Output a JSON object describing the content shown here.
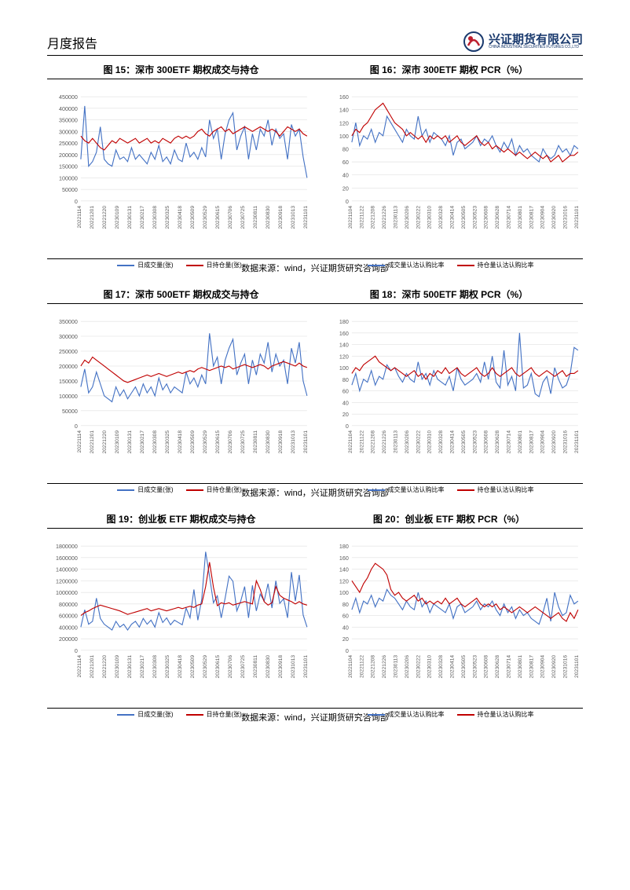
{
  "header": {
    "title": "月度报告",
    "logo_cn": "兴证期货有限公司",
    "logo_en": "CHINA INDUSTRIAL SECURITIES FUTURES CO.,LTD"
  },
  "source_text": "数据来源：wind，兴证期货研究咨询部",
  "colors": {
    "blue": "#4472c4",
    "red": "#c00000",
    "logo_blue": "#1a3a6e",
    "logo_red": "#bd1e2d",
    "grid": "#d9d9d9",
    "axis": "#595959",
    "tick_text": "#595959"
  },
  "charts": [
    {
      "row_id": 1,
      "left": {
        "title": "图 15：深市 300ETF 期权成交与持仓",
        "ylim": [
          0,
          450000
        ],
        "ytick_step": 50000,
        "xlabels": [
          "20221114",
          "20221201",
          "20221220",
          "20230109",
          "20230131",
          "20230217",
          "20230308",
          "20230325",
          "20230418",
          "20230509",
          "20230529",
          "20230615",
          "20230706",
          "20230725",
          "20230811",
          "20230830",
          "20230918",
          "20231013",
          "20231101"
        ],
        "series1_label": "日成交量(张)",
        "series2_label": "日持仓量(张)",
        "series1_color": "#4472c4",
        "series2_color": "#c00000",
        "series1": [
          180000,
          410000,
          150000,
          170000,
          210000,
          320000,
          180000,
          160000,
          150000,
          220000,
          180000,
          190000,
          170000,
          230000,
          180000,
          200000,
          180000,
          160000,
          210000,
          180000,
          240000,
          170000,
          190000,
          160000,
          220000,
          180000,
          170000,
          250000,
          190000,
          210000,
          180000,
          230000,
          190000,
          350000,
          270000,
          310000,
          180000,
          290000,
          350000,
          380000,
          220000,
          280000,
          320000,
          180000,
          290000,
          220000,
          310000,
          280000,
          350000,
          240000,
          310000,
          270000,
          290000,
          180000,
          330000,
          280000,
          310000,
          190000,
          100000
        ],
        "series2": [
          280000,
          260000,
          250000,
          270000,
          250000,
          230000,
          220000,
          240000,
          260000,
          250000,
          270000,
          260000,
          250000,
          260000,
          270000,
          250000,
          260000,
          270000,
          250000,
          260000,
          250000,
          270000,
          260000,
          250000,
          270000,
          280000,
          270000,
          280000,
          270000,
          280000,
          300000,
          310000,
          290000,
          280000,
          300000,
          310000,
          320000,
          300000,
          310000,
          290000,
          300000,
          310000,
          320000,
          310000,
          300000,
          310000,
          320000,
          310000,
          300000,
          310000,
          300000,
          280000,
          300000,
          320000,
          310000,
          300000,
          310000,
          290000,
          280000
        ]
      },
      "right": {
        "title": "图 16：深市 300ETF 期权 PCR（%）",
        "ylim": [
          0,
          160
        ],
        "ytick_step": 20,
        "xlabels": [
          "20221104",
          "20221122",
          "20221208",
          "20221226",
          "20230113",
          "20230206",
          "20230222",
          "20230310",
          "20230328",
          "20230414",
          "20230505",
          "20230523",
          "20230608",
          "20230628",
          "20230714",
          "20230801",
          "20230817",
          "20230904",
          "20230920",
          "20231016",
          "20231101"
        ],
        "series1_label": "成交量认沽认购比率",
        "series2_label": "持仓量认沽认购比率",
        "series1_color": "#4472c4",
        "series2_color": "#c00000",
        "series1": [
          90,
          120,
          85,
          100,
          95,
          110,
          90,
          105,
          100,
          130,
          120,
          110,
          100,
          90,
          110,
          100,
          95,
          130,
          100,
          110,
          90,
          105,
          100,
          95,
          85,
          100,
          70,
          90,
          95,
          80,
          85,
          90,
          100,
          85,
          95,
          90,
          100,
          85,
          75,
          90,
          80,
          95,
          70,
          85,
          75,
          80,
          70,
          65,
          60,
          80,
          70,
          65,
          70,
          85,
          75,
          80,
          70,
          85,
          80
        ],
        "series2": [
          100,
          110,
          105,
          115,
          120,
          130,
          140,
          145,
          150,
          140,
          130,
          120,
          115,
          110,
          100,
          105,
          100,
          95,
          100,
          90,
          100,
          95,
          100,
          95,
          100,
          90,
          95,
          100,
          90,
          85,
          90,
          95,
          100,
          90,
          85,
          90,
          80,
          85,
          80,
          75,
          80,
          75,
          70,
          75,
          70,
          65,
          70,
          75,
          70,
          65,
          70,
          60,
          65,
          70,
          60,
          65,
          70,
          70,
          75
        ]
      }
    },
    {
      "row_id": 2,
      "left": {
        "title": "图 17：深市 500ETF 期权成交与持仓",
        "ylim": [
          0,
          350000
        ],
        "ytick_step": 50000,
        "xlabels": [
          "20221114",
          "20221201",
          "20221220",
          "20230109",
          "20230131",
          "20230217",
          "20230308",
          "20230325",
          "20230418",
          "20230509",
          "20230529",
          "20230615",
          "20230706",
          "20230725",
          "20230811",
          "20230830",
          "20230918",
          "20231013",
          "20231101"
        ],
        "series1_label": "日成交量(张)",
        "series2_label": "日持仓量(张)",
        "series1_color": "#4472c4",
        "series2_color": "#c00000",
        "series1": [
          130000,
          190000,
          110000,
          130000,
          180000,
          140000,
          100000,
          90000,
          80000,
          130000,
          100000,
          120000,
          90000,
          110000,
          130000,
          100000,
          140000,
          110000,
          130000,
          100000,
          160000,
          120000,
          140000,
          110000,
          130000,
          120000,
          110000,
          180000,
          140000,
          160000,
          130000,
          170000,
          140000,
          310000,
          200000,
          230000,
          140000,
          220000,
          260000,
          290000,
          170000,
          210000,
          240000,
          140000,
          220000,
          170000,
          240000,
          210000,
          280000,
          180000,
          240000,
          200000,
          220000,
          140000,
          260000,
          210000,
          280000,
          150000,
          100000
        ],
        "series2": [
          200000,
          220000,
          210000,
          230000,
          220000,
          210000,
          200000,
          190000,
          180000,
          170000,
          160000,
          150000,
          145000,
          150000,
          155000,
          160000,
          165000,
          170000,
          165000,
          170000,
          175000,
          170000,
          165000,
          170000,
          175000,
          180000,
          175000,
          180000,
          185000,
          180000,
          190000,
          195000,
          190000,
          185000,
          190000,
          195000,
          200000,
          195000,
          200000,
          190000,
          195000,
          200000,
          205000,
          200000,
          195000,
          200000,
          205000,
          200000,
          190000,
          200000,
          205000,
          210000,
          215000,
          210000,
          205000,
          200000,
          210000,
          200000,
          195000
        ]
      },
      "right": {
        "title": "图 18：深市 500ETF 期权 PCR（%）",
        "ylim": [
          0,
          180
        ],
        "ytick_step": 20,
        "xlabels": [
          "20221104",
          "20221122",
          "20221208",
          "20221226",
          "20230113",
          "20230206",
          "20230222",
          "20230310",
          "20230328",
          "20230414",
          "20230505",
          "20230523",
          "20230608",
          "20230628",
          "20230714",
          "20230801",
          "20230817",
          "20230904",
          "20230920",
          "20231016",
          "20231101"
        ],
        "series1_label": "成交量认沽认购比率",
        "series2_label": "持仓量认沽认购比率",
        "series1_color": "#4472c4",
        "series2_color": "#c00000",
        "series1": [
          70,
          90,
          60,
          80,
          75,
          95,
          70,
          85,
          80,
          105,
          95,
          100,
          85,
          75,
          90,
          80,
          75,
          110,
          80,
          90,
          70,
          95,
          80,
          75,
          70,
          85,
          60,
          100,
          80,
          70,
          75,
          80,
          90,
          75,
          110,
          80,
          120,
          75,
          65,
          130,
          70,
          85,
          60,
          160,
          65,
          70,
          90,
          55,
          50,
          75,
          85,
          55,
          100,
          80,
          65,
          70,
          90,
          135,
          130
        ],
        "series2": [
          90,
          100,
          95,
          105,
          110,
          115,
          120,
          110,
          105,
          100,
          95,
          100,
          95,
          90,
          85,
          90,
          95,
          85,
          90,
          80,
          90,
          85,
          95,
          90,
          100,
          90,
          95,
          100,
          90,
          85,
          90,
          95,
          100,
          90,
          85,
          90,
          100,
          90,
          85,
          90,
          95,
          100,
          90,
          85,
          90,
          95,
          100,
          90,
          85,
          90,
          95,
          90,
          85,
          90,
          95,
          85,
          90,
          90,
          95
        ]
      }
    },
    {
      "row_id": 3,
      "left": {
        "title": "图 19：创业板 ETF 期权成交与持仓",
        "ylim": [
          0,
          1800000
        ],
        "ytick_step": 200000,
        "xlabels": [
          "20221114",
          "20221201",
          "20221220",
          "20230109",
          "20230131",
          "20230217",
          "20230308",
          "20230325",
          "20230418",
          "20230509",
          "20230529",
          "20230615",
          "20230706",
          "20230725",
          "20230811",
          "20230830",
          "20230918",
          "20231013",
          "20231101"
        ],
        "series1_label": "日成交量(张)",
        "series2_label": "日持仓量(张)",
        "series1_color": "#4472c4",
        "series2_color": "#c00000",
        "series1": [
          400000,
          700000,
          450000,
          500000,
          900000,
          550000,
          450000,
          400000,
          350000,
          500000,
          400000,
          450000,
          350000,
          450000,
          500000,
          400000,
          550000,
          450000,
          520000,
          400000,
          650000,
          480000,
          560000,
          440000,
          520000,
          480000,
          440000,
          730000,
          560000,
          1050000,
          520000,
          880000,
          1700000,
          1280000,
          820000,
          940000,
          560000,
          900000,
          1280000,
          1190000,
          680000,
          850000,
          1100000,
          560000,
          1120000,
          680000,
          970000,
          850000,
          1150000,
          730000,
          1200000,
          810000,
          890000,
          560000,
          1350000,
          850000,
          1300000,
          610000,
          400000
        ],
        "series2": [
          600000,
          650000,
          680000,
          720000,
          750000,
          780000,
          760000,
          740000,
          720000,
          700000,
          680000,
          650000,
          620000,
          640000,
          660000,
          680000,
          700000,
          720000,
          680000,
          700000,
          720000,
          700000,
          680000,
          700000,
          720000,
          740000,
          720000,
          740000,
          760000,
          740000,
          780000,
          800000,
          1100000,
          1520000,
          1090000,
          770000,
          820000,
          800000,
          820000,
          780000,
          800000,
          820000,
          840000,
          820000,
          800000,
          1200000,
          1050000,
          840000,
          780000,
          820000,
          1100000,
          950000,
          900000,
          870000,
          840000,
          800000,
          840000,
          800000,
          780000
        ]
      },
      "right": {
        "title": "图 20：创业板 ETF 期权 PCR（%）",
        "ylim": [
          0,
          180
        ],
        "ytick_step": 20,
        "xlabels": [
          "20221104",
          "20221122",
          "20221208",
          "20221226",
          "20230113",
          "20230206",
          "20230222",
          "20230310",
          "20230328",
          "20230414",
          "20230505",
          "20230523",
          "20230608",
          "20230628",
          "20230714",
          "20230801",
          "20230817",
          "20230904",
          "20230920",
          "20231016",
          "20231101"
        ],
        "series1_label": "成交量认沽认购比率",
        "series2_label": "持仓量认沽认购比率",
        "series1_color": "#4472c4",
        "series2_color": "#c00000",
        "series1": [
          70,
          90,
          65,
          85,
          80,
          95,
          75,
          90,
          85,
          105,
          95,
          90,
          80,
          70,
          85,
          75,
          70,
          100,
          75,
          85,
          65,
          80,
          75,
          70,
          65,
          80,
          55,
          75,
          80,
          65,
          70,
          75,
          85,
          70,
          80,
          75,
          85,
          70,
          60,
          80,
          65,
          75,
          55,
          70,
          60,
          65,
          55,
          50,
          45,
          65,
          90,
          50,
          100,
          75,
          60,
          65,
          95,
          80,
          85
        ],
        "series2": [
          120,
          110,
          100,
          115,
          125,
          140,
          150,
          145,
          140,
          130,
          105,
          95,
          100,
          90,
          85,
          90,
          95,
          85,
          90,
          80,
          85,
          80,
          85,
          80,
          90,
          80,
          85,
          90,
          80,
          75,
          80,
          85,
          90,
          80,
          75,
          80,
          75,
          80,
          70,
          75,
          70,
          65,
          70,
          75,
          70,
          65,
          70,
          75,
          70,
          65,
          60,
          55,
          60,
          65,
          55,
          50,
          65,
          55,
          70
        ]
      }
    }
  ]
}
